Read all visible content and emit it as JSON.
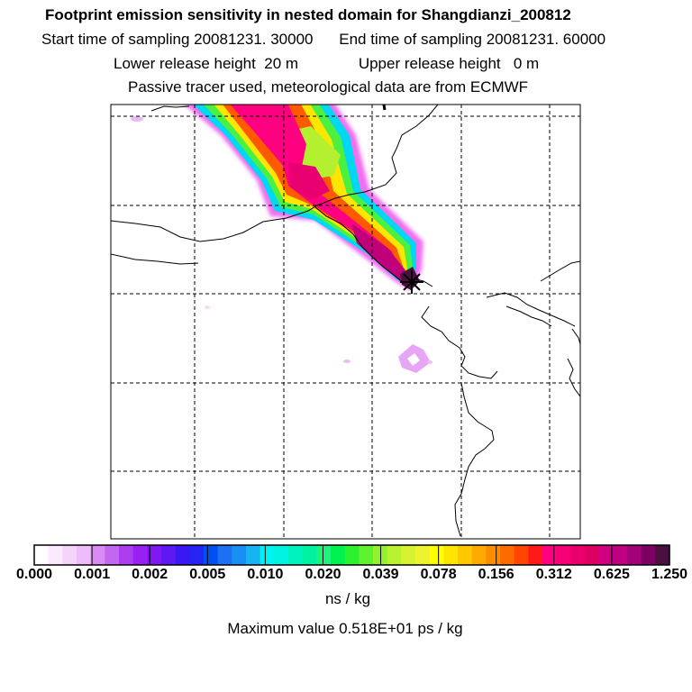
{
  "title": "Footprint emission sensitivity in nested domain for Shangdianzi_200812",
  "sampling": {
    "start_label": "Start time of sampling",
    "start_value": "20081231. 30000",
    "end_label": "End time of sampling",
    "end_value": "20081231. 60000"
  },
  "release": {
    "lower_label": "Lower release height",
    "lower_value": "20 m",
    "upper_label": "Upper release height",
    "upper_value": "0 m"
  },
  "subtitle": "Passive tracer used, meteorological data are from ECMWF",
  "colorbar": {
    "labels": [
      "0.000",
      "0.001",
      "0.002",
      "0.005",
      "0.010",
      "0.020",
      "0.039",
      "0.078",
      "0.156",
      "0.312",
      "0.625",
      "1.250"
    ],
    "colors": [
      "#ffffff",
      "#fde9fd",
      "#f6d3fa",
      "#eebcf8",
      "#d98bf3",
      "#c466f0",
      "#ad3ef0",
      "#9a1ff3",
      "#7f18f3",
      "#5d18f3",
      "#3a18f3",
      "#2525f3",
      "#004ff0",
      "#1f6ff3",
      "#1691f3",
      "#16b4f3",
      "#00f2f2",
      "#00f2e2",
      "#00f2bf",
      "#00f2a0",
      "#20f280",
      "#00f250",
      "#2af230",
      "#5ff230",
      "#91f230",
      "#b8f230",
      "#d6f230",
      "#eef230",
      "#ffff00",
      "#ffe600",
      "#ffc800",
      "#ffaa00",
      "#ff8c00",
      "#ff6a00",
      "#ff4500",
      "#ff1a1a",
      "#ff0080",
      "#f70077",
      "#ea006c",
      "#dc0063",
      "#cf007f",
      "#bf0082",
      "#a4007a",
      "#7c0061",
      "#4b1040"
    ]
  },
  "unit_label": "ns / kg",
  "max_value_text": "Maximum value  0.518E+01 ps / kg"
}
